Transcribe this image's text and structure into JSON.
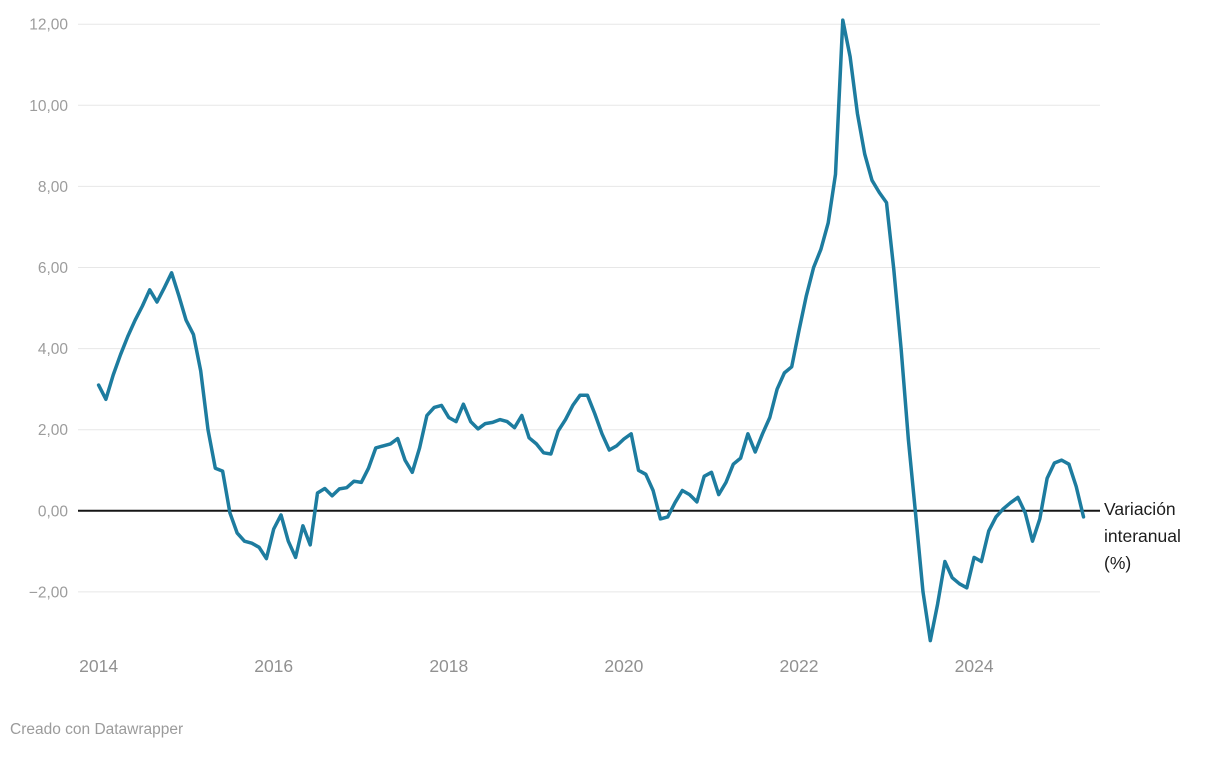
{
  "ui": {
    "right_label_lines": [
      "Variación",
      "interanual",
      "(%)"
    ],
    "footer": "Creado con Datawrapper"
  },
  "colors": {
    "line": "#1d7c9f",
    "zero_line": "#161616",
    "gridline": "#e7e7e7",
    "y_tick_label": "#9c9c9c",
    "x_tick_label": "#919191",
    "right_label": "#1d1d1d",
    "footer": "#9b9b9b",
    "background": "#ffffff"
  },
  "chart_data": {
    "type": "line",
    "title": "",
    "xlabel": "",
    "ylabel": "Variación interanual (%)",
    "legend": "none",
    "grid": "horizontal gridlines, zero baseline emphasized in black",
    "frequency": "monthly",
    "start": "2014-01",
    "end": "2025-04",
    "xlim": [
      2013.75,
      2025.45
    ],
    "ylim": [
      -3.5,
      12.5
    ],
    "x_ticks": [
      {
        "value": 2014,
        "label": "2014"
      },
      {
        "value": 2016,
        "label": "2016"
      },
      {
        "value": 2018,
        "label": "2018"
      },
      {
        "value": 2020,
        "label": "2020"
      },
      {
        "value": 2022,
        "label": "2022"
      },
      {
        "value": 2024,
        "label": "2024"
      }
    ],
    "y_ticks": [
      {
        "value": 12,
        "label": "12,00"
      },
      {
        "value": 10,
        "label": "10,00"
      },
      {
        "value": 8,
        "label": "8,00"
      },
      {
        "value": 6,
        "label": "6,00"
      },
      {
        "value": 4,
        "label": "4,00"
      },
      {
        "value": 2,
        "label": "2,00"
      },
      {
        "value": 0,
        "label": "0,00"
      },
      {
        "value": -2,
        "label": "−2,00"
      }
    ],
    "series": [
      {
        "name": "Variación interanual (%)",
        "values": [
          3.1,
          2.75,
          3.35,
          3.85,
          4.3,
          4.7,
          5.05,
          5.45,
          5.15,
          5.5,
          5.87,
          5.3,
          4.7,
          4.35,
          3.45,
          2.0,
          1.05,
          0.98,
          -0.05,
          -0.55,
          -0.75,
          -0.8,
          -0.9,
          -1.18,
          -0.45,
          -0.1,
          -0.75,
          -1.15,
          -0.37,
          -0.84,
          0.44,
          0.55,
          0.37,
          0.54,
          0.57,
          0.73,
          0.7,
          1.05,
          1.55,
          1.6,
          1.65,
          1.78,
          1.25,
          0.95,
          1.55,
          2.35,
          2.55,
          2.6,
          2.3,
          2.2,
          2.63,
          2.2,
          2.02,
          2.15,
          2.18,
          2.25,
          2.2,
          2.05,
          2.35,
          1.8,
          1.65,
          1.43,
          1.4,
          1.97,
          2.25,
          2.6,
          2.85,
          2.85,
          2.4,
          1.9,
          1.5,
          1.6,
          1.77,
          1.9,
          1.0,
          0.9,
          0.5,
          -0.2,
          -0.15,
          0.2,
          0.5,
          0.4,
          0.22,
          0.85,
          0.95,
          0.4,
          0.7,
          1.15,
          1.3,
          1.9,
          1.45,
          1.9,
          2.3,
          3.0,
          3.4,
          3.55,
          4.45,
          5.3,
          6.0,
          6.45,
          7.1,
          8.3,
          12.1,
          11.2,
          9.8,
          8.8,
          8.15,
          7.85,
          7.6,
          5.95,
          4.0,
          1.75,
          -0.1,
          -2.0,
          -3.2,
          -2.3,
          -1.25,
          -1.65,
          -1.8,
          -1.9,
          -1.15,
          -1.25,
          -0.5,
          -0.15,
          0.05,
          0.2,
          0.33,
          -0.05,
          -0.75,
          -0.2,
          0.8,
          1.18,
          1.25,
          1.15,
          0.6,
          -0.15
        ]
      }
    ]
  }
}
